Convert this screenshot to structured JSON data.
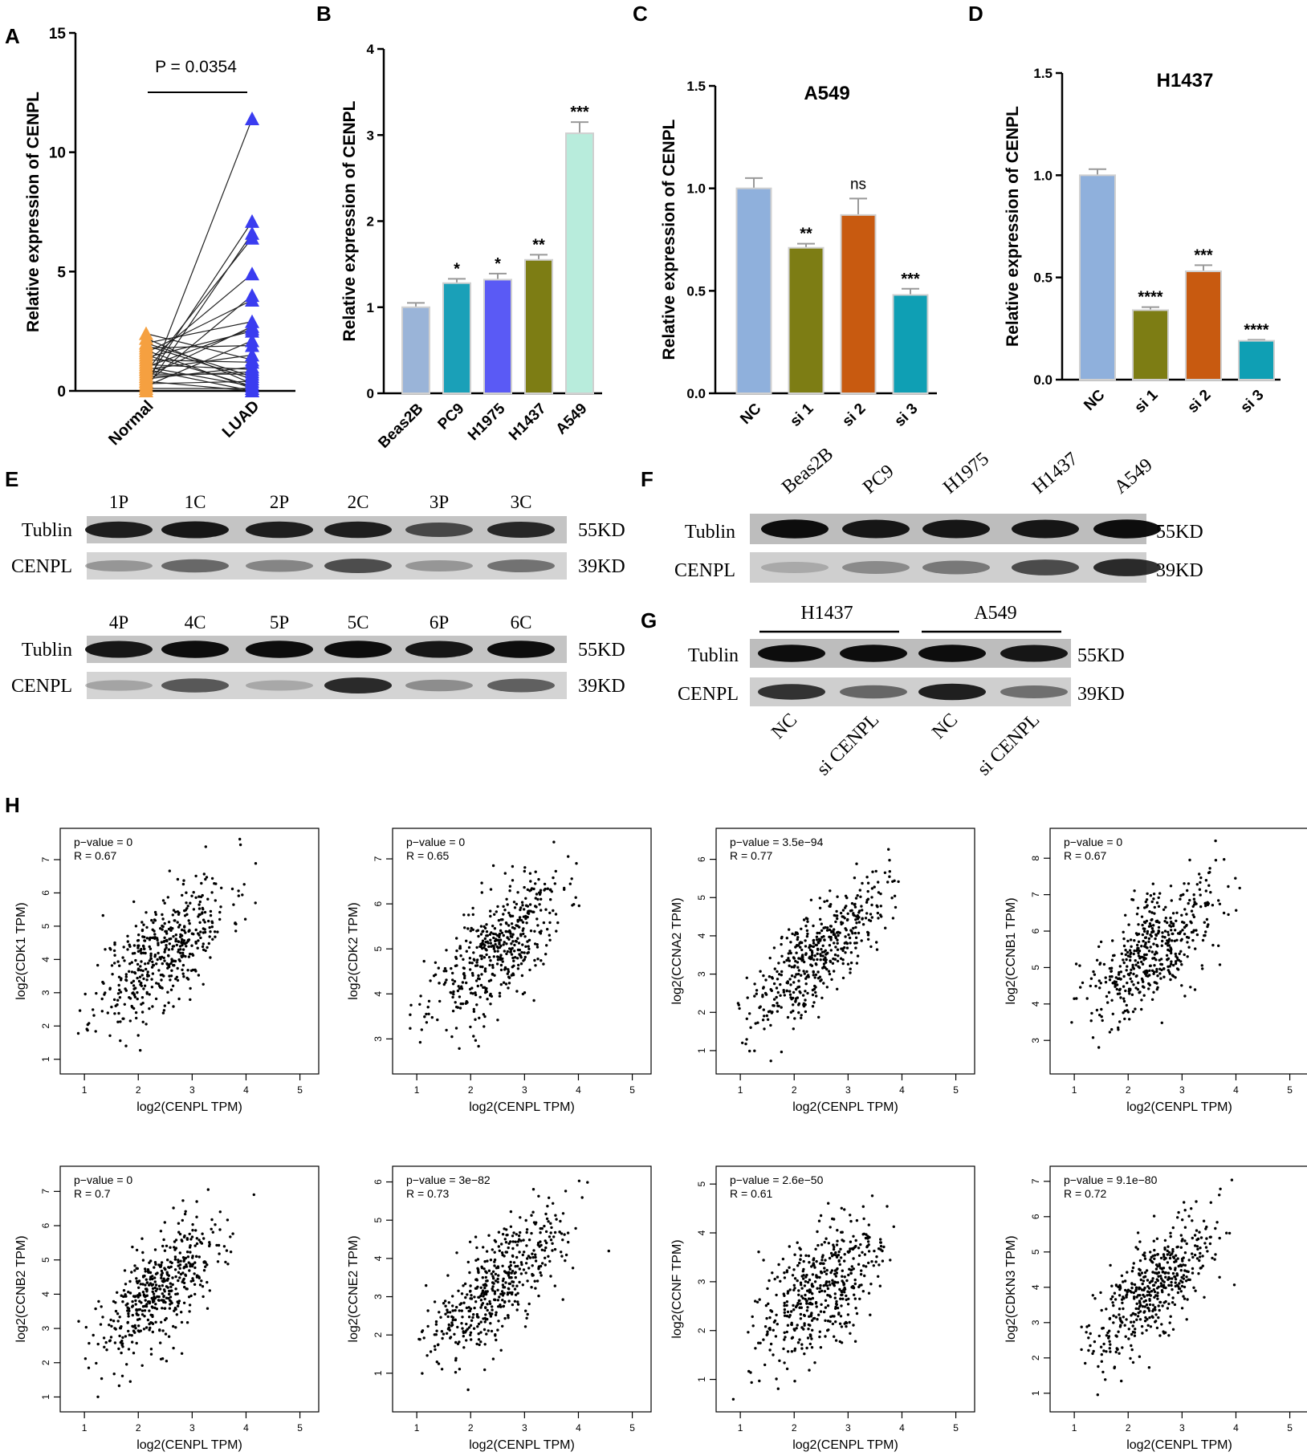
{
  "panel_letters": [
    "A",
    "B",
    "C",
    "D",
    "E",
    "F",
    "G",
    "H"
  ],
  "chart_data": [
    {
      "panel": "A",
      "type": "paired-scatter",
      "title": "",
      "ylabel": "Relative expression of CENPL",
      "ylim": [
        0,
        15
      ],
      "yticks": [
        "0",
        "5",
        "10",
        "15"
      ],
      "categories": [
        "Normal",
        "LUAD"
      ],
      "annotation": "P = 0.0354",
      "colors": {
        "Normal": "#f5a040",
        "LUAD": "#3a3cf0"
      },
      "pairs": [
        [
          0.0,
          11.4
        ],
        [
          0.4,
          7.1
        ],
        [
          0.1,
          6.6
        ],
        [
          0.8,
          6.4
        ],
        [
          1.2,
          4.9
        ],
        [
          0.3,
          4.0
        ],
        [
          1.6,
          3.8
        ],
        [
          2.0,
          2.9
        ],
        [
          0.6,
          2.7
        ],
        [
          1.0,
          2.6
        ],
        [
          1.4,
          2.5
        ],
        [
          0.2,
          2.1
        ],
        [
          1.8,
          1.9
        ],
        [
          0.9,
          1.5
        ],
        [
          2.4,
          1.3
        ],
        [
          0.5,
          1.0
        ],
        [
          1.1,
          0.9
        ],
        [
          0.7,
          0.7
        ],
        [
          1.9,
          0.5
        ],
        [
          0.3,
          0.4
        ],
        [
          2.2,
          0.3
        ],
        [
          1.5,
          0.2
        ],
        [
          0.1,
          0.1
        ],
        [
          1.7,
          0.1
        ],
        [
          0.9,
          0.0
        ],
        [
          2.0,
          0.6
        ],
        [
          1.3,
          1.2
        ],
        [
          0.6,
          0.8
        ],
        [
          1.0,
          0.2
        ],
        [
          0.4,
          0.0
        ]
      ]
    },
    {
      "panel": "B",
      "type": "bar",
      "title": "",
      "ylabel": "Relative expression of CENPL",
      "ylim": [
        0,
        4
      ],
      "yticks": [
        "0",
        "1",
        "2",
        "3",
        "4"
      ],
      "categories": [
        "Beas2B",
        "PC9",
        "H1975",
        "H1437",
        "A549"
      ],
      "values": [
        1.0,
        1.28,
        1.32,
        1.55,
        3.02
      ],
      "errors": [
        0.05,
        0.05,
        0.07,
        0.06,
        0.13
      ],
      "significance": [
        "",
        "*",
        "*",
        "**",
        "***"
      ],
      "colors": [
        "#9ab4d8",
        "#1aa0b8",
        "#5a5af5",
        "#7d7d14",
        "#b8ecdc"
      ]
    },
    {
      "panel": "C",
      "type": "bar",
      "title": "A549",
      "ylabel": "Relative expression of CENPL",
      "ylim": [
        0,
        1.5
      ],
      "yticks": [
        "0.0",
        "0.5",
        "1.0",
        "1.5"
      ],
      "categories": [
        "NC",
        "si 1",
        "si 2",
        "si 3"
      ],
      "values": [
        1.0,
        0.71,
        0.87,
        0.48
      ],
      "errors": [
        0.05,
        0.02,
        0.08,
        0.03
      ],
      "significance": [
        "",
        "**",
        "ns",
        "***"
      ],
      "colors": [
        "#8fb0dc",
        "#7d7d14",
        "#c85a10",
        "#0f9fb4"
      ]
    },
    {
      "panel": "D",
      "type": "bar",
      "title": "H1437",
      "ylabel": "Relative expression of CENPL",
      "ylim": [
        0,
        1.5
      ],
      "yticks": [
        "0.0",
        "0.5",
        "1.0",
        "1.5"
      ],
      "categories": [
        "NC",
        "si 1",
        "si 2",
        "si 3"
      ],
      "values": [
        1.0,
        0.34,
        0.53,
        0.19
      ],
      "errors": [
        0.03,
        0.015,
        0.03,
        0.005
      ],
      "significance": [
        "",
        "****",
        "***",
        "****"
      ],
      "colors": [
        "#8fb0dc",
        "#7d7d14",
        "#c85a10",
        "#0f9fb4"
      ]
    },
    {
      "panel": "H",
      "type": "scatter",
      "xlabel": "log2(CENPL TPM)",
      "ylabel": "log2(CDK1 TPM)",
      "pvalue": "p−value = 0",
      "r": "R = 0.67",
      "r_value": 0.67,
      "xlim": [
        0.7,
        5.2
      ],
      "ylim": [
        0.8,
        7.7
      ],
      "xticks": [
        "1",
        "2",
        "3",
        "4",
        "5"
      ],
      "yticks": [
        "1",
        "2",
        "3",
        "4",
        "5",
        "6",
        "7"
      ],
      "n": 480,
      "seed": 11
    },
    {
      "panel": "H",
      "type": "scatter",
      "xlabel": "log2(CENPL TPM)",
      "ylabel": "log2(CDK2 TPM)",
      "pvalue": "p−value = 0",
      "r": "R = 0.65",
      "r_value": 0.65,
      "xlim": [
        0.7,
        5.2
      ],
      "ylim": [
        2.4,
        7.5
      ],
      "xticks": [
        "1",
        "2",
        "3",
        "4",
        "5"
      ],
      "yticks": [
        "3",
        "4",
        "5",
        "6",
        "7"
      ],
      "n": 480,
      "seed": 23
    },
    {
      "panel": "H",
      "type": "scatter",
      "xlabel": "log2(CENPL TPM)",
      "ylabel": "log2(CCNA2 TPM)",
      "pvalue": "p−value = 3.5e−94",
      "r": "R = 0.77",
      "r_value": 0.77,
      "xlim": [
        0.7,
        5.2
      ],
      "ylim": [
        0.6,
        6.6
      ],
      "xticks": [
        "1",
        "2",
        "3",
        "4",
        "5"
      ],
      "yticks": [
        "1",
        "2",
        "3",
        "4",
        "5",
        "6"
      ],
      "n": 480,
      "seed": 37
    },
    {
      "panel": "H",
      "type": "scatter",
      "xlabel": "log2(CENPL TPM)",
      "ylabel": "log2(CCNB1 TPM)",
      "pvalue": "p−value = 0",
      "r": "R = 0.67",
      "r_value": 0.67,
      "xlim": [
        0.7,
        5.2
      ],
      "ylim": [
        2.3,
        8.6
      ],
      "xticks": [
        "1",
        "2",
        "3",
        "4",
        "5"
      ],
      "yticks": [
        "3",
        "4",
        "5",
        "6",
        "7",
        "8"
      ],
      "n": 480,
      "seed": 41
    },
    {
      "panel": "H",
      "type": "scatter",
      "xlabel": "log2(CENPL TPM)",
      "ylabel": "log2(CCNB2 TPM)",
      "pvalue": "p−value = 0",
      "r": "R = 0.7",
      "r_value": 0.7,
      "xlim": [
        0.7,
        5.2
      ],
      "ylim": [
        0.8,
        7.5
      ],
      "xticks": [
        "1",
        "2",
        "3",
        "4",
        "5"
      ],
      "yticks": [
        "1",
        "2",
        "3",
        "4",
        "5",
        "6",
        "7"
      ],
      "n": 480,
      "seed": 53
    },
    {
      "panel": "H",
      "type": "scatter",
      "xlabel": "log2(CENPL TPM)",
      "ylabel": "log2(CCNE2 TPM)",
      "pvalue": "p−value = 3e−82",
      "r": "R = 0.73",
      "r_value": 0.73,
      "xlim": [
        0.7,
        5.2
      ],
      "ylim": [
        0.2,
        6.2
      ],
      "xticks": [
        "1",
        "2",
        "3",
        "4",
        "5"
      ],
      "yticks": [
        "1",
        "2",
        "3",
        "4",
        "5",
        "6"
      ],
      "n": 480,
      "seed": 67
    },
    {
      "panel": "H",
      "type": "scatter",
      "xlabel": "log2(CENPL TPM)",
      "ylabel": "log2(CCNF TPM)",
      "pvalue": "p−value = 2.6e−50",
      "r": "R = 0.61",
      "r_value": 0.61,
      "xlim": [
        0.7,
        5.2
      ],
      "ylim": [
        0.5,
        5.2
      ],
      "xticks": [
        "1",
        "2",
        "3",
        "4",
        "5"
      ],
      "yticks": [
        "1",
        "2",
        "3",
        "4",
        "5"
      ],
      "n": 480,
      "seed": 79
    },
    {
      "panel": "H",
      "type": "scatter",
      "xlabel": "log2(CENPL TPM)",
      "ylabel": "log2(CDKN3 TPM)",
      "pvalue": "p−value = 9.1e−80",
      "r": "R = 0.72",
      "r_value": 0.72,
      "xlim": [
        0.7,
        5.2
      ],
      "ylim": [
        0.7,
        7.2
      ],
      "xticks": [
        "1",
        "2",
        "3",
        "4",
        "5"
      ],
      "yticks": [
        "1",
        "2",
        "3",
        "4",
        "5",
        "6",
        "7"
      ],
      "n": 480,
      "seed": 97
    }
  ],
  "blots": {
    "E": {
      "rows": [
        {
          "lanes": [
            "1P",
            "1C",
            "2P",
            "2C",
            "3P",
            "3C"
          ],
          "bands": [
            {
              "label": "Tublin",
              "size": "55KD",
              "intensity": [
                0.85,
                0.9,
                0.85,
                0.85,
                0.6,
                0.8
              ]
            },
            {
              "label": "CENPL",
              "size": "39KD",
              "intensity": [
                0.2,
                0.45,
                0.3,
                0.6,
                0.2,
                0.4
              ]
            }
          ]
        },
        {
          "lanes": [
            "4P",
            "4C",
            "5P",
            "5C",
            "6P",
            "6C"
          ],
          "bands": [
            {
              "label": "Tublin",
              "size": "55KD",
              "intensity": [
                0.9,
                0.95,
                0.95,
                0.95,
                0.9,
                0.95
              ]
            },
            {
              "label": "CENPL",
              "size": "39KD",
              "intensity": [
                0.12,
                0.55,
                0.1,
                0.8,
                0.25,
                0.5
              ]
            }
          ]
        }
      ]
    },
    "F": {
      "lanes": [
        "Beas2B",
        "PC9",
        "H1975",
        "H1437",
        "A549"
      ],
      "bands": [
        {
          "label": "Tublin",
          "size": "55KD",
          "intensity": [
            0.95,
            0.9,
            0.9,
            0.9,
            0.95
          ]
        },
        {
          "label": "CENPL",
          "size": "39KD",
          "intensity": [
            0.08,
            0.25,
            0.35,
            0.6,
            0.8
          ]
        }
      ]
    },
    "G": {
      "groups": [
        "H1437",
        "A549"
      ],
      "lanes": [
        "NC",
        "si CENPL",
        "NC",
        "si CENPL"
      ],
      "bands": [
        {
          "label": "Tublin",
          "size": "55KD",
          "intensity": [
            0.95,
            0.95,
            0.95,
            0.9
          ]
        },
        {
          "label": "CENPL",
          "size": "39KD",
          "intensity": [
            0.75,
            0.45,
            0.85,
            0.4
          ]
        }
      ]
    }
  }
}
